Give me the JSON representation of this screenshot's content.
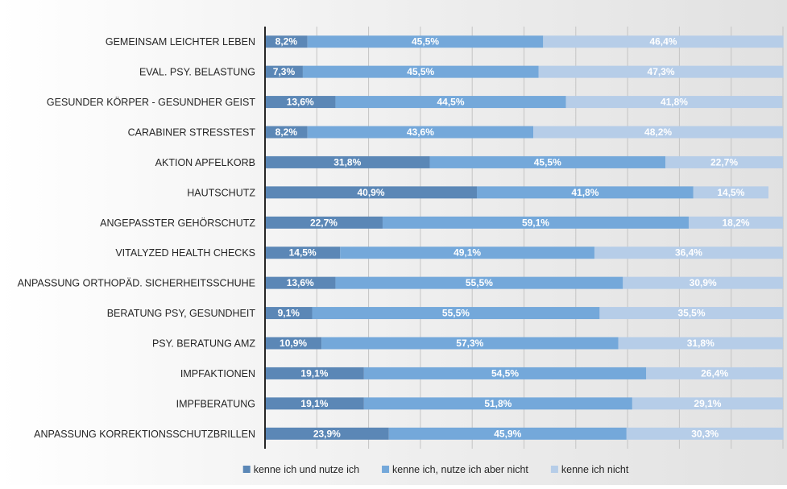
{
  "chart_data": {
    "type": "bar",
    "orientation": "horizontal",
    "stacked": "100%",
    "categories": [
      "GEMEINSAM LEICHTER LEBEN",
      "EVAL. PSY. BELASTUNG",
      "GESUNDER KÖRPER - GESUNDHER GEIST",
      "CARABINER STRESSTEST",
      "AKTION APFELKORB",
      "HAUTSCHUTZ",
      "ANGEPASSTER GEHÖRSCHUTZ",
      "VITALYZED HEALTH CHECKS",
      "ANPASSUNG ORTHOPÄD. SICHERHEITSSCHUHE",
      "BERATUNG PSY, GESUNDHEIT",
      "PSY. BERATUNG AMZ",
      "IMPFAKTIONEN",
      "IMPFBERATUNG",
      "ANPASSUNG KORREKTIONSSCHUTZBRILLEN"
    ],
    "series": [
      {
        "name": "kenne ich und nutze ich",
        "color": "#5b87b6",
        "values": [
          8.2,
          7.3,
          13.6,
          8.2,
          31.8,
          40.9,
          22.7,
          14.5,
          13.6,
          9.1,
          10.9,
          19.1,
          19.1,
          23.9
        ],
        "labels": [
          "8,2%",
          "7,3%",
          "13,6%",
          "8,2%",
          "31,8%",
          "40,9%",
          "22,7%",
          "14,5%",
          "13,6%",
          "9,1%",
          "10,9%",
          "19,1%",
          "19,1%",
          "23,9%"
        ]
      },
      {
        "name": "kenne ich, nutze ich aber nicht",
        "color": "#74a8da",
        "values": [
          45.5,
          45.5,
          44.5,
          43.6,
          45.5,
          41.8,
          59.1,
          49.1,
          55.5,
          55.5,
          57.3,
          54.5,
          51.8,
          45.9
        ],
        "labels": [
          "45,5%",
          "45,5%",
          "44,5%",
          "43,6%",
          "45,5%",
          "41,8%",
          "59,1%",
          "49,1%",
          "55,5%",
          "55,5%",
          "57,3%",
          "54,5%",
          "51,8%",
          "45,9%"
        ]
      },
      {
        "name": "kenne ich nicht",
        "color": "#b6cde8",
        "values": [
          46.4,
          47.3,
          41.8,
          48.2,
          22.7,
          14.5,
          18.2,
          36.4,
          30.9,
          35.5,
          31.8,
          26.4,
          29.1,
          30.3
        ],
        "labels": [
          "46,4%",
          "47,3%",
          "41,8%",
          "48,2%",
          "22,7%",
          "14,5%",
          "18,2%",
          "36,4%",
          "30,9%",
          "35,5%",
          "31,8%",
          "26,4%",
          "29,1%",
          "30,3%"
        ]
      }
    ],
    "xlim": [
      0,
      100
    ],
    "grid": true,
    "legend_position": "bottom"
  }
}
